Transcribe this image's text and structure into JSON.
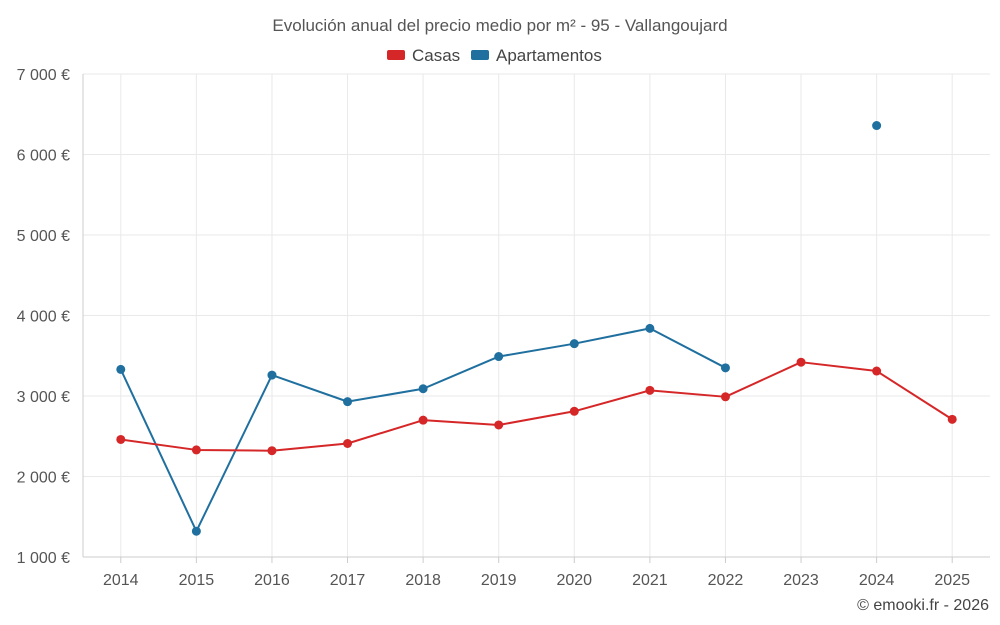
{
  "chart_data": {
    "type": "line",
    "title": "Evolución anual del precio medio por m² - 95 - Vallangoujard",
    "categories": [
      "2014",
      "2015",
      "2016",
      "2017",
      "2018",
      "2019",
      "2020",
      "2021",
      "2022",
      "2023",
      "2024",
      "2025"
    ],
    "y_ticks": [
      1000,
      2000,
      3000,
      4000,
      5000,
      6000,
      7000
    ],
    "y_tick_labels": [
      "1 000 €",
      "2 000 €",
      "3 000 €",
      "4 000 €",
      "5 000 €",
      "6 000 €",
      "7 000 €"
    ],
    "ylim": [
      1000,
      7000
    ],
    "grid": true,
    "legend_position": "top-center",
    "series": [
      {
        "name": "Casas",
        "color": "#d62728",
        "values": [
          2460,
          2330,
          2320,
          2410,
          2700,
          2640,
          2810,
          3070,
          2990,
          3420,
          3310,
          2710
        ]
      },
      {
        "name": "Apartamentos",
        "color": "#1f6f9f",
        "values": [
          3330,
          1320,
          3260,
          2930,
          3090,
          3490,
          3650,
          3840,
          3350,
          null,
          6360,
          null
        ]
      }
    ],
    "credit": "© emooki.fr - 2026"
  }
}
